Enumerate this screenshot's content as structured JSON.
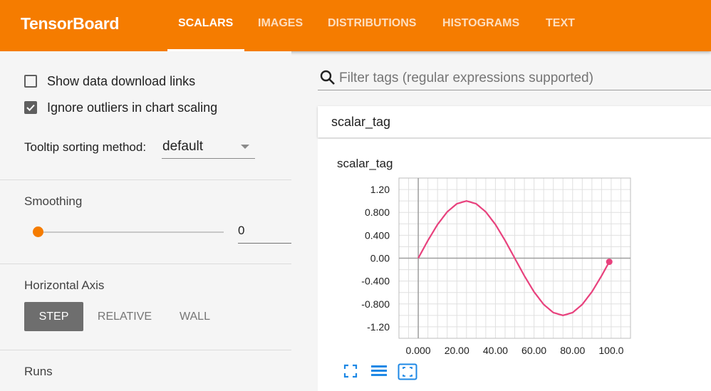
{
  "header": {
    "brand": "TensorBoard",
    "tabs": [
      {
        "label": "SCALARS",
        "active": true
      },
      {
        "label": "IMAGES",
        "active": false
      },
      {
        "label": "DISTRIBUTIONS",
        "active": false
      },
      {
        "label": "HISTOGRAMS",
        "active": false
      },
      {
        "label": "TEXT",
        "active": false
      }
    ],
    "bar_color": "#f57c00"
  },
  "sidebar": {
    "show_download_links": {
      "label": "Show data download links",
      "checked": false
    },
    "ignore_outliers": {
      "label": "Ignore outliers in chart scaling",
      "checked": true
    },
    "tooltip_sorting": {
      "label": "Tooltip sorting method:",
      "value": "default"
    },
    "smoothing": {
      "label": "Smoothing",
      "value": "0",
      "slider_fraction": 0
    },
    "horizontal_axis": {
      "label": "Horizontal Axis",
      "options": [
        "STEP",
        "RELATIVE",
        "WALL"
      ],
      "selected": "STEP"
    },
    "runs": {
      "label": "Runs"
    }
  },
  "main": {
    "search": {
      "placeholder": "Filter tags (regular expressions supported)",
      "icon": "search-icon"
    },
    "pane": {
      "title": "scalar_tag"
    },
    "card": {
      "title": "scalar_tag",
      "tools": [
        "fit-domain-icon",
        "toggle-log-scale-icon",
        "reset-zoom-icon"
      ]
    }
  },
  "chart_data": {
    "type": "line",
    "title": "scalar_tag",
    "xlabel": "",
    "ylabel": "",
    "xlim": [
      -10,
      110
    ],
    "ylim": [
      -1.4,
      1.4
    ],
    "x_ticks": [
      "0.000",
      "20.00",
      "40.00",
      "60.00",
      "80.00",
      "100.0"
    ],
    "y_ticks": [
      "1.20",
      "0.800",
      "0.400",
      "0.00",
      "-0.400",
      "-0.800",
      "-1.20"
    ],
    "grid": true,
    "series": [
      {
        "color": "#e8417d",
        "x": [
          0,
          5,
          10,
          15,
          20,
          25,
          30,
          35,
          40,
          45,
          50,
          55,
          60,
          65,
          70,
          75,
          80,
          85,
          90,
          95,
          99
        ],
        "y": [
          0,
          0.309,
          0.588,
          0.809,
          0.951,
          1.0,
          0.951,
          0.809,
          0.588,
          0.309,
          0,
          -0.309,
          -0.588,
          -0.809,
          -0.951,
          -1.0,
          -0.951,
          -0.809,
          -0.588,
          -0.309,
          -0.063
        ]
      }
    ]
  }
}
